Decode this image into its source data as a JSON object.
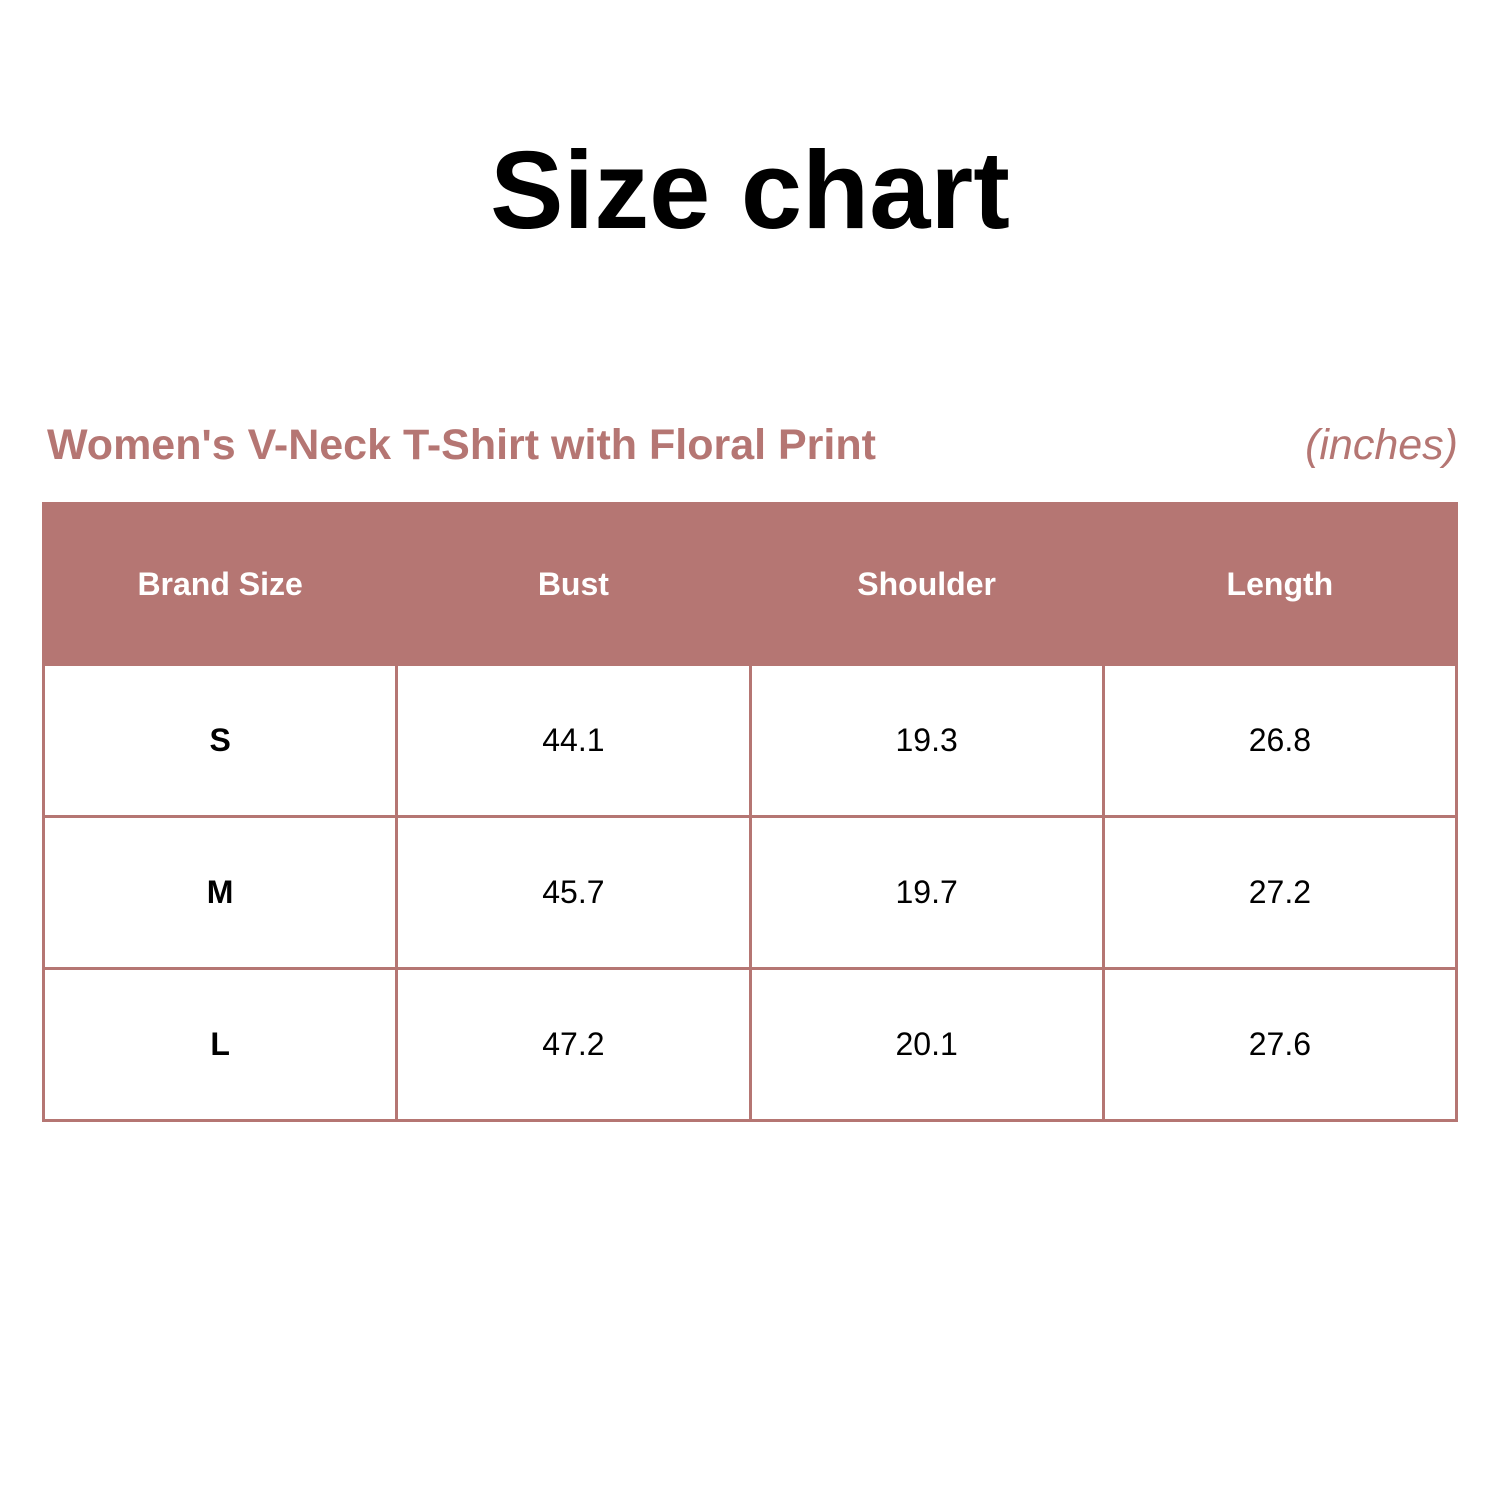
{
  "title": "Size chart",
  "subtitle": "Women's V-Neck T-Shirt with Floral Print",
  "units": "(inches)",
  "accent_color": "#b57673",
  "table": {
    "headers": [
      "Brand Size",
      "Bust",
      "Shoulder",
      "Length"
    ],
    "rows": [
      [
        "S",
        "44.1",
        "19.3",
        "26.8"
      ],
      [
        "M",
        "45.7",
        "19.7",
        "27.2"
      ],
      [
        "L",
        "47.2",
        "20.1",
        "27.6"
      ]
    ]
  }
}
